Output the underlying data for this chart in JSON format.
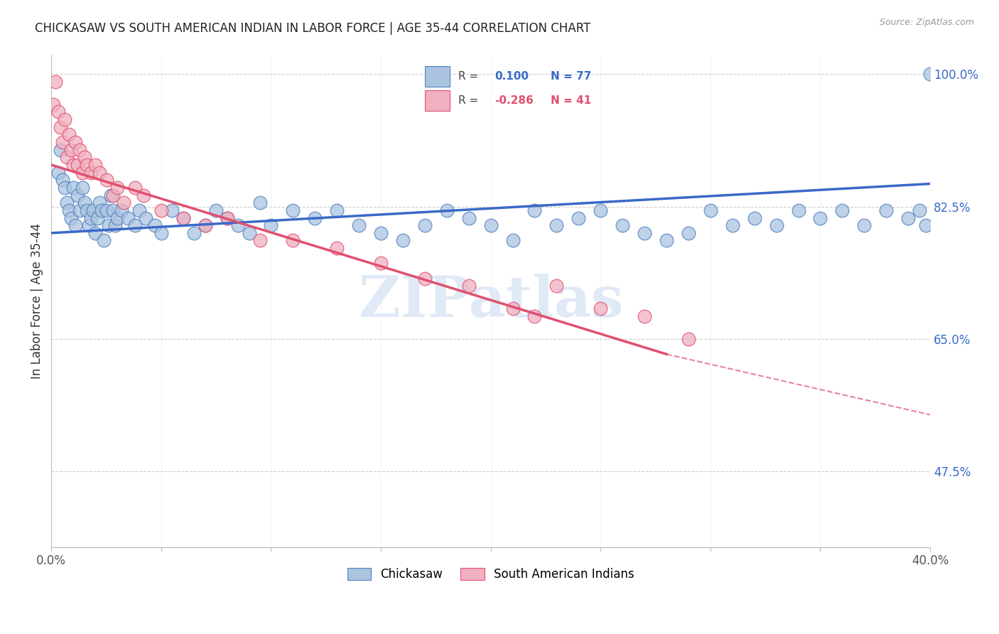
{
  "title": "CHICKASAW VS SOUTH AMERICAN INDIAN IN LABOR FORCE | AGE 35-44 CORRELATION CHART",
  "source_text": "Source: ZipAtlas.com",
  "ylabel": "In Labor Force | Age 35-44",
  "xlim": [
    0.0,
    0.4
  ],
  "ylim": [
    0.375,
    1.025
  ],
  "xticks": [
    0.0,
    0.05,
    0.1,
    0.15,
    0.2,
    0.25,
    0.3,
    0.35,
    0.4
  ],
  "xticklabels": [
    "0.0%",
    "",
    "",
    "",
    "",
    "",
    "",
    "",
    "40.0%"
  ],
  "yticks_right": [
    0.475,
    0.65,
    0.825,
    1.0
  ],
  "ytick_labels_right": [
    "47.5%",
    "65.0%",
    "82.5%",
    "100.0%"
  ],
  "blue_color": "#aac4e0",
  "pink_color": "#f0b0c0",
  "blue_edge_color": "#5080c0",
  "pink_edge_color": "#e05070",
  "blue_line_color": "#3a6ac8",
  "pink_line_color": "#e05070",
  "blue_R": "0.100",
  "blue_N": "77",
  "pink_R": "-0.286",
  "pink_N": "41",
  "watermark": "ZIPatlas",
  "watermark_color": "#c8d8f0",
  "background_color": "#ffffff",
  "grid_color": "#cccccc",
  "blue_line_x0": 0.0,
  "blue_line_y0": 0.79,
  "blue_line_x1": 0.4,
  "blue_line_y1": 0.855,
  "pink_line_x0": 0.0,
  "pink_line_y0": 0.88,
  "pink_line_x1_solid": 0.28,
  "pink_line_y1_solid": 0.63,
  "pink_line_x1_dash": 0.4,
  "pink_line_y1_dash": 0.55,
  "blue_x": [
    0.003,
    0.004,
    0.005,
    0.006,
    0.007,
    0.008,
    0.009,
    0.01,
    0.011,
    0.012,
    0.013,
    0.014,
    0.015,
    0.016,
    0.017,
    0.018,
    0.019,
    0.02,
    0.021,
    0.022,
    0.023,
    0.024,
    0.025,
    0.026,
    0.027,
    0.028,
    0.029,
    0.03,
    0.032,
    0.035,
    0.038,
    0.04,
    0.043,
    0.047,
    0.05,
    0.055,
    0.06,
    0.065,
    0.07,
    0.075,
    0.08,
    0.085,
    0.09,
    0.095,
    0.1,
    0.11,
    0.12,
    0.13,
    0.14,
    0.15,
    0.16,
    0.17,
    0.18,
    0.19,
    0.2,
    0.21,
    0.22,
    0.23,
    0.24,
    0.25,
    0.26,
    0.27,
    0.28,
    0.29,
    0.3,
    0.31,
    0.32,
    0.33,
    0.34,
    0.35,
    0.36,
    0.37,
    0.38,
    0.39,
    0.395,
    0.398,
    0.4
  ],
  "blue_y": [
    0.87,
    0.9,
    0.86,
    0.85,
    0.83,
    0.82,
    0.81,
    0.85,
    0.8,
    0.84,
    0.82,
    0.85,
    0.83,
    0.82,
    0.8,
    0.81,
    0.82,
    0.79,
    0.81,
    0.83,
    0.82,
    0.78,
    0.82,
    0.8,
    0.84,
    0.82,
    0.8,
    0.81,
    0.82,
    0.81,
    0.8,
    0.82,
    0.81,
    0.8,
    0.79,
    0.82,
    0.81,
    0.79,
    0.8,
    0.82,
    0.81,
    0.8,
    0.79,
    0.83,
    0.8,
    0.82,
    0.81,
    0.82,
    0.8,
    0.79,
    0.78,
    0.8,
    0.82,
    0.81,
    0.8,
    0.78,
    0.82,
    0.8,
    0.81,
    0.82,
    0.8,
    0.79,
    0.78,
    0.79,
    0.82,
    0.8,
    0.81,
    0.8,
    0.82,
    0.81,
    0.82,
    0.8,
    0.82,
    0.81,
    0.82,
    0.8,
    1.0
  ],
  "pink_x": [
    0.001,
    0.002,
    0.003,
    0.004,
    0.005,
    0.006,
    0.007,
    0.008,
    0.009,
    0.01,
    0.011,
    0.012,
    0.013,
    0.014,
    0.015,
    0.016,
    0.018,
    0.02,
    0.022,
    0.025,
    0.028,
    0.03,
    0.033,
    0.038,
    0.042,
    0.05,
    0.06,
    0.07,
    0.08,
    0.095,
    0.11,
    0.13,
    0.15,
    0.17,
    0.19,
    0.21,
    0.22,
    0.23,
    0.25,
    0.27,
    0.29
  ],
  "pink_y": [
    0.96,
    0.99,
    0.95,
    0.93,
    0.91,
    0.94,
    0.89,
    0.92,
    0.9,
    0.88,
    0.91,
    0.88,
    0.9,
    0.87,
    0.89,
    0.88,
    0.87,
    0.88,
    0.87,
    0.86,
    0.84,
    0.85,
    0.83,
    0.85,
    0.84,
    0.82,
    0.81,
    0.8,
    0.81,
    0.78,
    0.78,
    0.77,
    0.75,
    0.73,
    0.72,
    0.69,
    0.68,
    0.72,
    0.69,
    0.68,
    0.65
  ]
}
